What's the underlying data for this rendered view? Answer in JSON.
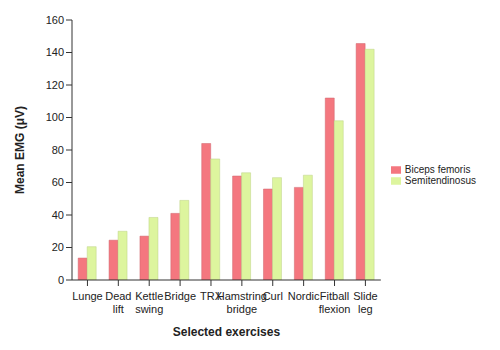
{
  "chart_data": {
    "type": "bar",
    "x_label": "Selected exercises",
    "y_label": "Mean EMG (μV)",
    "categories": [
      "Lunge",
      "Dead lift",
      "Kettle swing",
      "Bridge",
      "TRX",
      "Hamstring bridge",
      "Curl",
      "Nordic",
      "Fitball flexion",
      "Slide leg"
    ],
    "series": [
      {
        "name": "Biceps femoris",
        "color": "#f4777f",
        "values": [
          13.5,
          24.5,
          27,
          41,
          84,
          64,
          56,
          57,
          112,
          145.5
        ]
      },
      {
        "name": "Semitendinosus",
        "color": "#ddf59e",
        "values": [
          20.5,
          30,
          38.5,
          49,
          74.5,
          66,
          63,
          64.5,
          98,
          142
        ]
      }
    ],
    "ylim": [
      0,
      160
    ],
    "yticks": [
      0,
      20,
      40,
      60,
      80,
      100,
      120,
      140,
      160
    ],
    "grid": false,
    "legend": "right"
  }
}
